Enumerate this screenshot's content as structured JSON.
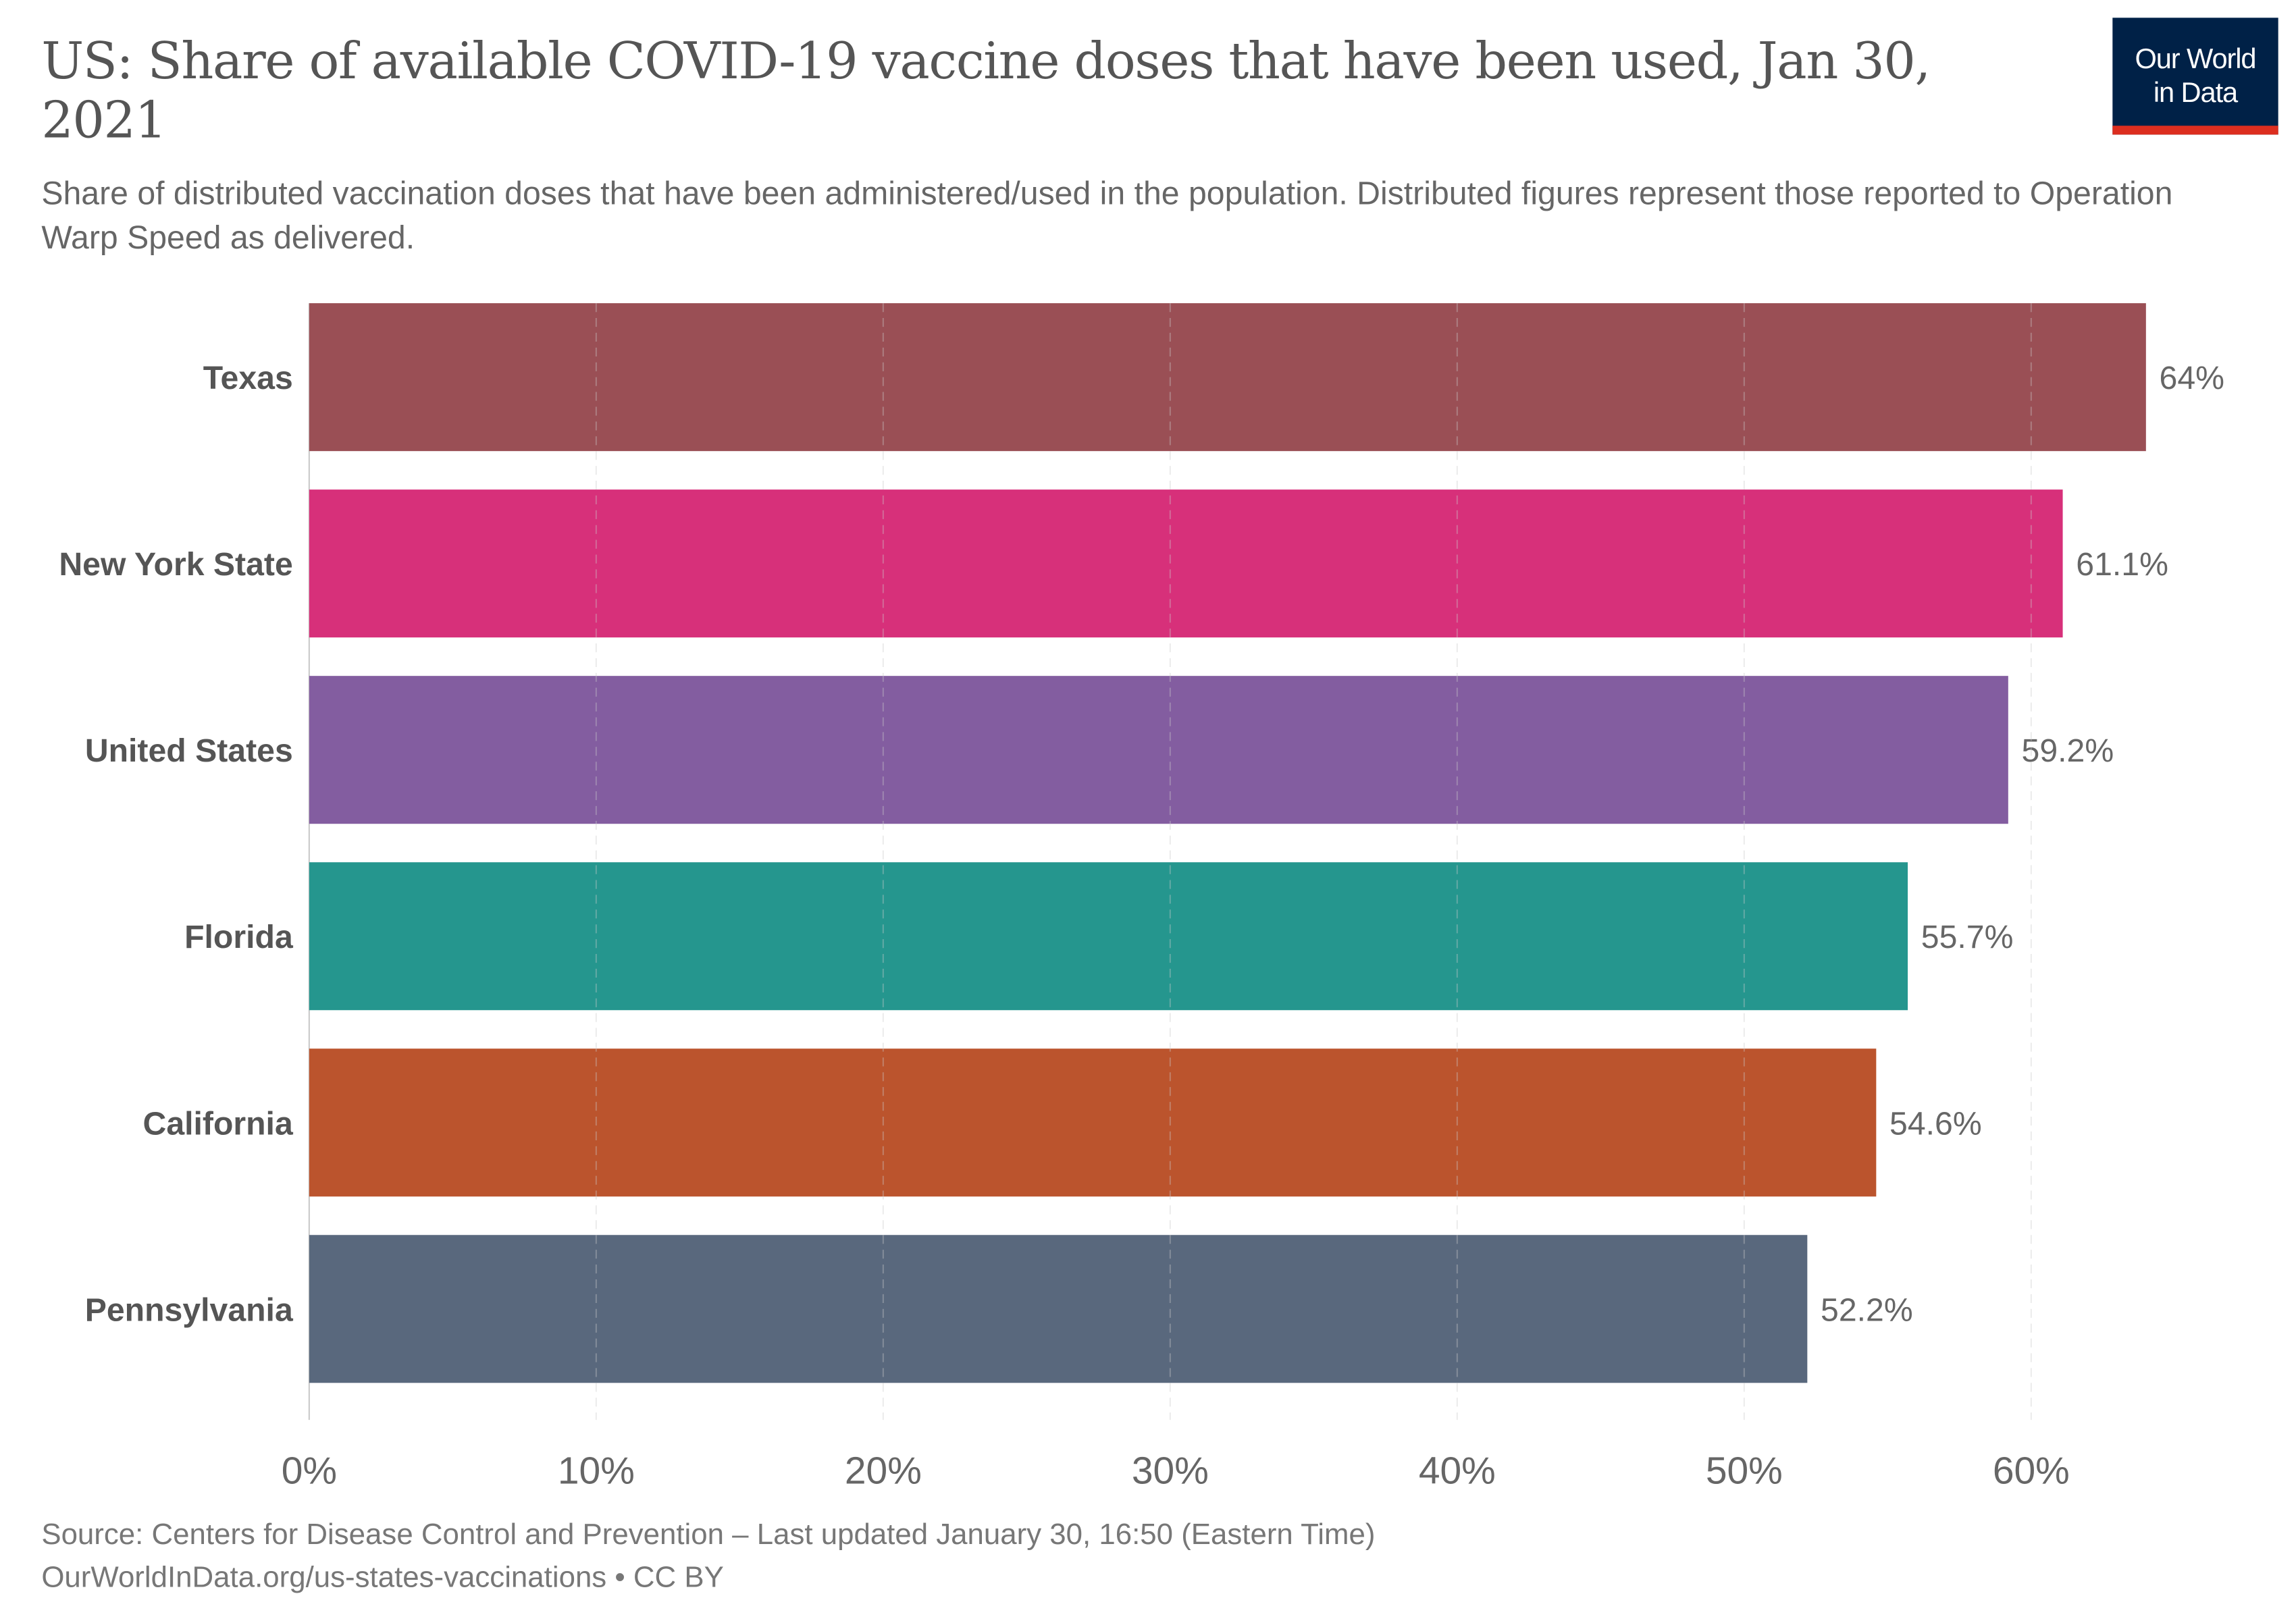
{
  "header": {
    "title": "US: Share of available COVID-19 vaccine doses that have been used, Jan 30, 2021",
    "subtitle": "Share of distributed vaccination doses that have been administered/used in the population. Distributed figures represent those reported to Operation Warp Speed as delivered.",
    "logo_line1": "Our World",
    "logo_line2": "in Data"
  },
  "footer": {
    "source": "Source: Centers for Disease Control and Prevention – Last updated January 30, 16:50 (Eastern Time)",
    "url_line": "OurWorldInData.org/us-states-vaccinations • CC BY"
  },
  "colors": {
    "logo_bg": "#002147",
    "logo_accent": "#dc2e1f"
  },
  "chart_data": {
    "type": "bar",
    "orientation": "horizontal",
    "categories": [
      "Texas",
      "New York State",
      "United States",
      "Florida",
      "California",
      "Pennsylvania"
    ],
    "values": [
      64,
      61.1,
      59.2,
      55.7,
      54.6,
      52.2
    ],
    "value_labels": [
      "64%",
      "61.1%",
      "59.2%",
      "55.7%",
      "54.6%",
      "52.2%"
    ],
    "colors": [
      "#9a4f55",
      "#d7307a",
      "#835da0",
      "#25968e",
      "#bb542d",
      "#59687d"
    ],
    "xticks": [
      0,
      10,
      20,
      30,
      40,
      50,
      60
    ],
    "xtick_labels": [
      "0%",
      "10%",
      "20%",
      "30%",
      "40%",
      "50%",
      "60%"
    ],
    "xlim": [
      0,
      64
    ],
    "grid": "vertical dashed",
    "xlabel": "",
    "ylabel": ""
  }
}
